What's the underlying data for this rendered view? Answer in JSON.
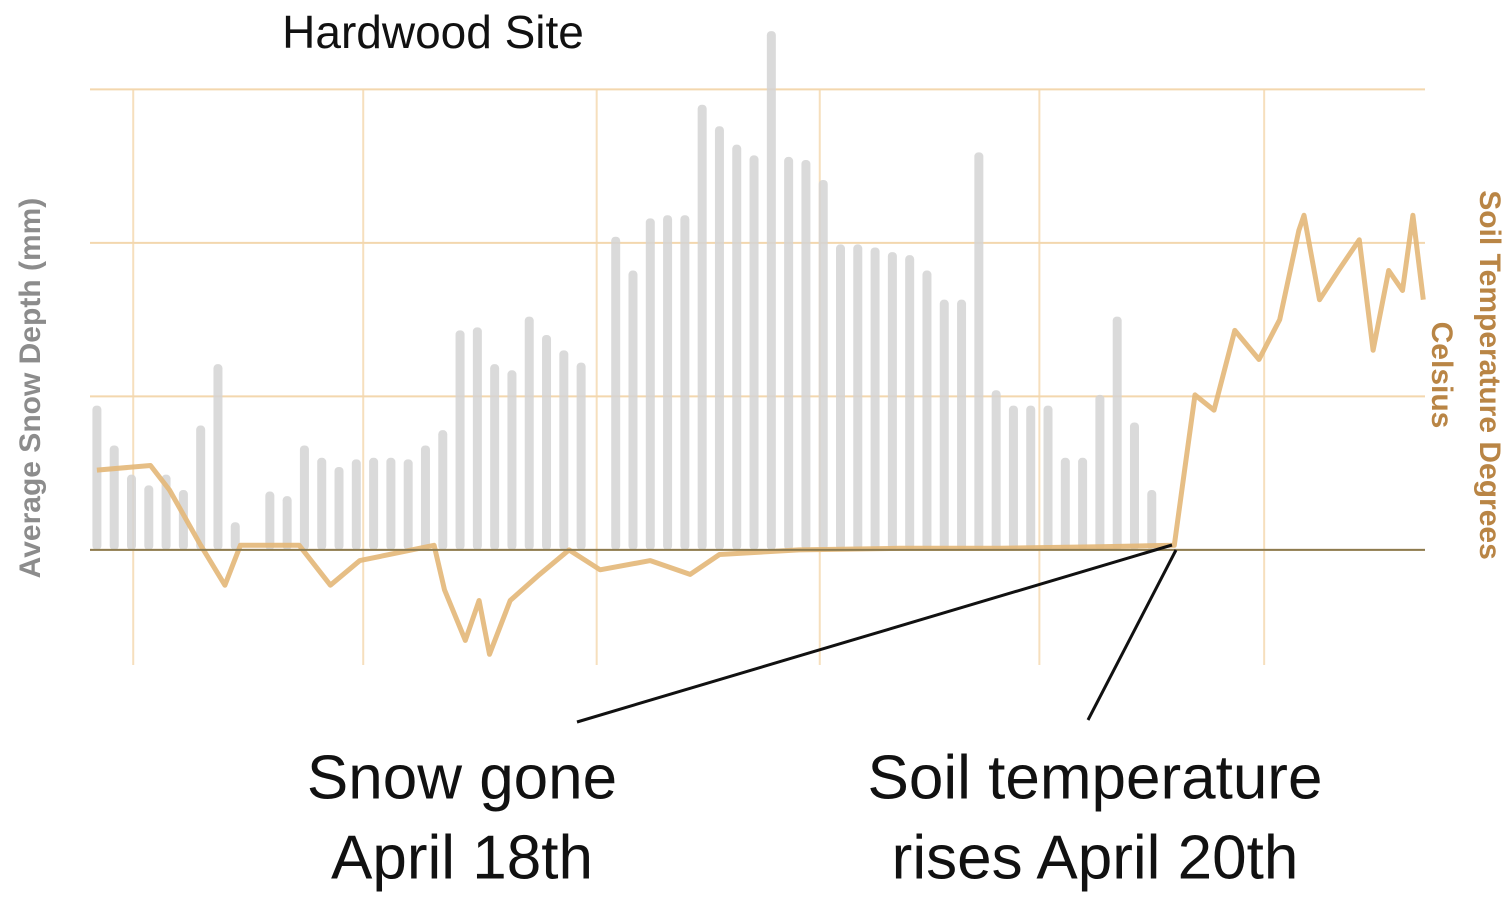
{
  "chart_data": {
    "type": "bar-line",
    "title": "Hardwood Site",
    "ylabel": "Average Snow Depth (mm)",
    "y2label": [
      "Soil Temperature Degrees",
      "Celsius"
    ],
    "annotations": [
      [
        "Snow gone",
        "April 18th"
      ],
      [
        "Soil temperature",
        "rises April 20th"
      ]
    ],
    "xlim": [
      -0.4,
      76.8
    ],
    "xticks": [
      2.1,
      15.4,
      28.9,
      41.8,
      54.5,
      67.5
    ],
    "ylim": [
      -0.75,
      3.4
    ],
    "yticks": [
      0,
      1,
      2,
      3
    ],
    "y2lim": [
      -0.75,
      3.4
    ],
    "grid": true,
    "series": [
      {
        "name": "Snow depth",
        "type": "bar",
        "color": "#d4d4d4",
        "x": [
          0,
          1,
          2,
          3,
          4,
          5,
          6,
          7,
          8,
          9,
          10,
          11,
          12,
          13,
          14,
          15,
          16,
          17,
          18,
          19,
          20,
          21,
          22,
          23,
          24,
          25,
          26,
          27,
          28,
          29,
          30,
          31,
          32,
          33,
          34,
          35,
          36,
          37,
          38,
          39,
          40,
          41,
          42,
          43,
          44,
          45,
          46,
          47,
          48,
          49,
          50,
          51,
          52,
          53,
          54,
          55,
          56,
          57,
          58,
          59,
          60,
          61
        ],
        "values": [
          0.94,
          0.68,
          0.49,
          0.42,
          0.49,
          0.39,
          0.81,
          1.21,
          0.18,
          0,
          0.38,
          0.35,
          0.68,
          0.6,
          0.54,
          0.59,
          0.6,
          0.6,
          0.59,
          0.68,
          0.78,
          1.43,
          1.45,
          1.21,
          1.17,
          1.52,
          1.4,
          1.3,
          1.22,
          0,
          2.04,
          1.82,
          2.16,
          2.18,
          2.18,
          2.9,
          2.76,
          2.64,
          2.57,
          3.38,
          2.56,
          2.54,
          2.41,
          1.99,
          1.99,
          1.97,
          1.94,
          1.92,
          1.82,
          1.63,
          1.63,
          2.59,
          1.04,
          0.94,
          0.94,
          0.94,
          0.6,
          0.6,
          1.01,
          1.52,
          0.83,
          0.39
        ]
      },
      {
        "name": "Soil temperature",
        "type": "line",
        "color": "#e3b778",
        "axis": "y2",
        "x": [
          0,
          3.1,
          4.2,
          6.0,
          7.4,
          8.3,
          11.7,
          13.5,
          15.2,
          19.5,
          20.1,
          21.3,
          22.1,
          22.7,
          23.9,
          25.6,
          27.3,
          29.1,
          32.0,
          34.3,
          36.0,
          40.6,
          46.4,
          52.2,
          58.0,
          62.3,
          62.9,
          63.5,
          64.6,
          65.8,
          67.2,
          68.4,
          69.5,
          69.8,
          70.7,
          71.8,
          73.0,
          73.8,
          74.7,
          75.5,
          76.1,
          76.7
        ],
        "values": [
          0.52,
          0.55,
          0.39,
          0.03,
          -0.23,
          0.03,
          0.03,
          -0.23,
          -0.07,
          0.03,
          -0.26,
          -0.59,
          -0.33,
          -0.68,
          -0.33,
          -0.16,
          0,
          -0.13,
          -0.07,
          -0.16,
          -0.03,
          0,
          0.01,
          0.01,
          0.02,
          0.03,
          0.52,
          1.01,
          0.91,
          1.43,
          1.24,
          1.5,
          2.08,
          2.18,
          1.63,
          1.82,
          2.02,
          1.3,
          1.82,
          1.69,
          2.18,
          1.63
        ]
      }
    ]
  }
}
